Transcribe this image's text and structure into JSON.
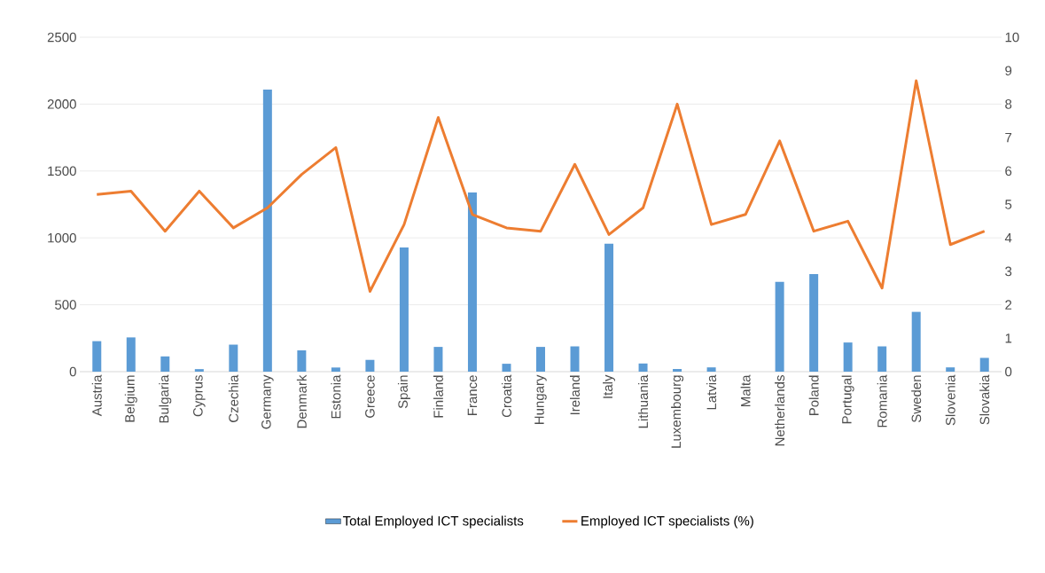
{
  "chart_data": {
    "type": "bar",
    "categories": [
      "Austria",
      "Belgium",
      "Bulgaria",
      "Cyprus",
      "Czechia",
      "Germany",
      "Denmark",
      "Estonia",
      "Greece",
      "Spain",
      "Finland",
      "France",
      "Croatia",
      "Hungary",
      "Ireland",
      "Italy",
      "Lithuania",
      "Luxembourg",
      "Latvia",
      "Malta",
      "Netherlands",
      "Poland",
      "Portugal",
      "Romania",
      "Sweden",
      "Slovenia",
      "Slovakia"
    ],
    "series": [
      {
        "name": "Total Employed ICT specialists",
        "color": "#5b9bd5",
        "values": [
          228,
          256,
          114,
          19,
          202,
          2108,
          159,
          31,
          88,
          928,
          185,
          1339,
          59,
          185,
          189,
          957,
          61,
          20,
          32,
          0,
          672,
          729,
          218,
          189,
          447,
          32,
          103
        ]
      },
      {
        "name": "Employed ICT specialists (%)",
        "type": "line",
        "axis": "y2",
        "color": "#ed7d31",
        "values": [
          5.3,
          5.4,
          4.2,
          5.4,
          4.3,
          4.9,
          5.9,
          6.7,
          2.4,
          4.4,
          7.6,
          4.7,
          4.3,
          4.2,
          6.2,
          4.1,
          4.9,
          8.0,
          4.4,
          4.7,
          6.9,
          4.2,
          4.5,
          2.5,
          8.7,
          3.8,
          4.2
        ]
      }
    ],
    "ylim": [
      0,
      2500
    ],
    "yticks": [
      0,
      500,
      1000,
      1500,
      2000,
      2500
    ],
    "y2lim": [
      0,
      10
    ],
    "y2ticks": [
      0,
      1,
      2,
      3,
      4,
      5,
      6,
      7,
      8,
      9,
      10
    ],
    "grid": "y",
    "legend": "bottom"
  }
}
